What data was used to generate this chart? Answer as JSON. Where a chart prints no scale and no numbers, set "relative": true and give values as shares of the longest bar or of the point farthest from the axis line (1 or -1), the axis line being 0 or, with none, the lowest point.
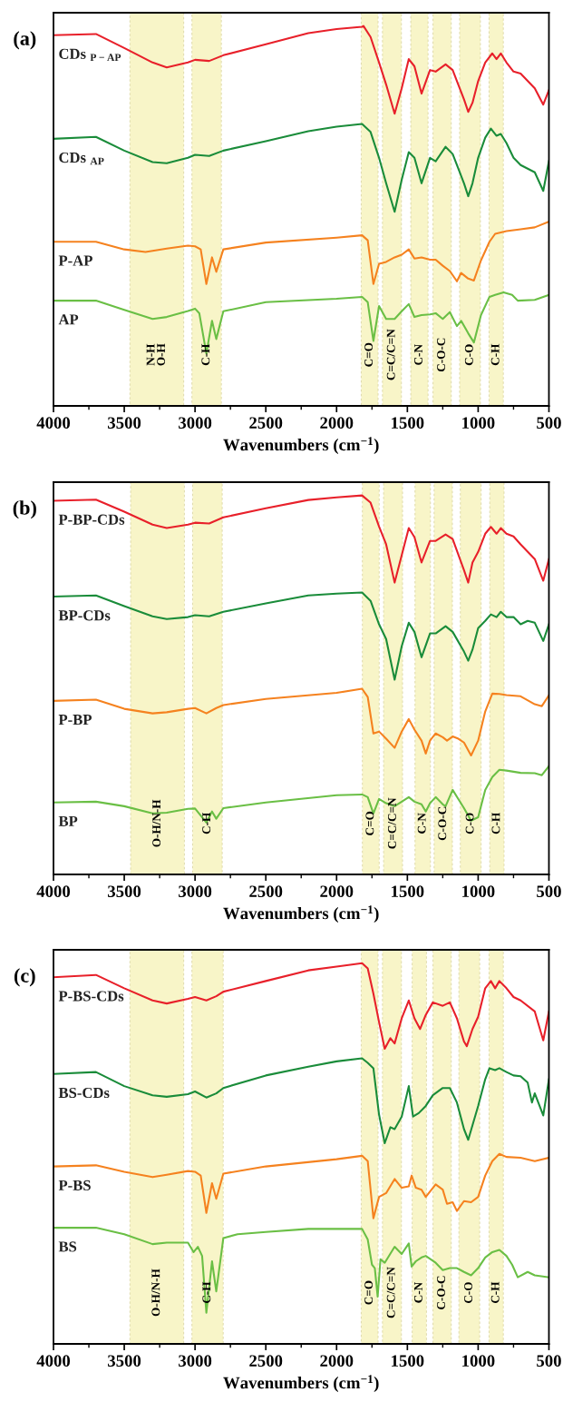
{
  "chart_data": [
    {
      "type": "line",
      "title": "(a)",
      "xlabel": "Wavenumbers (cm$^{−1}$)",
      "relative": true,
      "xlim": [
        4000,
        500
      ],
      "xticks": [
        4000,
        3500,
        3000,
        2500,
        2000,
        1500,
        1000,
        500
      ],
      "grid": false,
      "legend": false,
      "bands": [
        {
          "axis": "x",
          "from": 3460,
          "to": 3080,
          "label": "N-H\nO-H",
          "color": "#f8f5c8"
        },
        {
          "axis": "x",
          "from": 3022,
          "to": 2814,
          "label": "C-H",
          "color": "#f8f5c8"
        },
        {
          "axis": "x",
          "from": 1826,
          "to": 1707,
          "label": "C=O",
          "color": "#f8f5c8"
        },
        {
          "axis": "x",
          "from": 1676,
          "to": 1542,
          "label": "C=C/C=N",
          "color": "#f8f5c8"
        },
        {
          "axis": "x",
          "from": 1476,
          "to": 1354,
          "label": "C-N",
          "color": "#f8f5c8"
        },
        {
          "axis": "x",
          "from": 1319,
          "to": 1190,
          "label": "C-O-C",
          "color": "#f8f5c8"
        },
        {
          "axis": "x",
          "from": 1131,
          "to": 984,
          "label": "C-O",
          "color": "#f8f5c8"
        },
        {
          "axis": "x",
          "from": 923,
          "to": 822,
          "label": "C-H",
          "color": "#f8f5c8"
        }
      ],
      "series": [
        {
          "name": "CDs $_{P−AP}$",
          "color": "#e8202a",
          "x": [
            4000,
            3700,
            3500,
            3300,
            3200,
            3050,
            3000,
            2900,
            2800,
            2500,
            2200,
            2000,
            1820,
            1810,
            1760,
            1700,
            1650,
            1590,
            1540,
            1490,
            1450,
            1400,
            1340,
            1300,
            1230,
            1180,
            1100,
            1070,
            1040,
            1000,
            950,
            900,
            870,
            840,
            800,
            750,
            700,
            600,
            540,
            500
          ],
          "values": [
            0.976,
            0.979,
            0.942,
            0.904,
            0.891,
            0.904,
            0.911,
            0.908,
            0.923,
            0.952,
            0.981,
            0.992,
            0.998,
            1.0,
            0.971,
            0.904,
            0.846,
            0.769,
            0.836,
            0.913,
            0.894,
            0.822,
            0.884,
            0.88,
            0.899,
            0.884,
            0.807,
            0.774,
            0.798,
            0.855,
            0.904,
            0.928,
            0.913,
            0.928,
            0.904,
            0.88,
            0.875,
            0.836,
            0.793,
            0.831
          ]
        },
        {
          "name": "CDs $_{AP}$",
          "color": "#1a8c3a",
          "x": [
            4000,
            3700,
            3500,
            3300,
            3200,
            3050,
            3000,
            2900,
            2800,
            2500,
            2200,
            2000,
            1820,
            1760,
            1700,
            1650,
            1590,
            1540,
            1490,
            1450,
            1400,
            1340,
            1300,
            1230,
            1180,
            1100,
            1070,
            1040,
            1000,
            950,
            910,
            870,
            840,
            800,
            750,
            700,
            600,
            540,
            500
          ],
          "values": [
            0.703,
            0.708,
            0.672,
            0.642,
            0.639,
            0.653,
            0.661,
            0.658,
            0.672,
            0.697,
            0.723,
            0.735,
            0.742,
            0.721,
            0.653,
            0.586,
            0.511,
            0.595,
            0.668,
            0.653,
            0.586,
            0.653,
            0.644,
            0.682,
            0.663,
            0.586,
            0.552,
            0.586,
            0.653,
            0.706,
            0.73,
            0.711,
            0.716,
            0.692,
            0.653,
            0.634,
            0.615,
            0.566,
            0.644
          ]
        },
        {
          "name": "P-AP",
          "color": "#f5821f",
          "x": [
            4000,
            3700,
            3500,
            3350,
            3200,
            3050,
            3000,
            2960,
            2920,
            2880,
            2850,
            2800,
            2500,
            2000,
            1820,
            1780,
            1740,
            1700,
            1650,
            1590,
            1540,
            1490,
            1450,
            1400,
            1340,
            1300,
            1250,
            1200,
            1150,
            1120,
            1070,
            1030,
            980,
            920,
            880,
            800,
            700,
            600,
            500
          ],
          "values": [
            0.432,
            0.432,
            0.412,
            0.405,
            0.414,
            0.422,
            0.42,
            0.412,
            0.321,
            0.391,
            0.353,
            0.412,
            0.43,
            0.443,
            0.449,
            0.436,
            0.321,
            0.374,
            0.379,
            0.391,
            0.398,
            0.412,
            0.388,
            0.391,
            0.385,
            0.385,
            0.369,
            0.355,
            0.328,
            0.35,
            0.335,
            0.33,
            0.383,
            0.432,
            0.453,
            0.46,
            0.465,
            0.47,
            0.485
          ]
        },
        {
          "name": "AP",
          "color": "#6abf45",
          "x": [
            4000,
            3700,
            3500,
            3300,
            3200,
            3050,
            3000,
            2970,
            2920,
            2880,
            2850,
            2800,
            2500,
            2000,
            1820,
            1780,
            1740,
            1700,
            1650,
            1590,
            1540,
            1490,
            1450,
            1400,
            1340,
            1300,
            1250,
            1200,
            1150,
            1120,
            1070,
            1030,
            980,
            920,
            880,
            820,
            760,
            720,
            600,
            500
          ],
          "values": [
            0.277,
            0.277,
            0.253,
            0.229,
            0.234,
            0.25,
            0.256,
            0.244,
            0.138,
            0.224,
            0.176,
            0.249,
            0.273,
            0.282,
            0.287,
            0.273,
            0.171,
            0.263,
            0.229,
            0.229,
            0.249,
            0.268,
            0.234,
            0.239,
            0.241,
            0.244,
            0.229,
            0.247,
            0.21,
            0.224,
            0.191,
            0.167,
            0.239,
            0.287,
            0.292,
            0.299,
            0.292,
            0.277,
            0.279,
            0.292
          ]
        }
      ]
    },
    {
      "type": "line",
      "title": "(b)",
      "xlabel": "Wavenumbers (cm$^{−1}$)",
      "relative": true,
      "xlim": [
        4000,
        500
      ],
      "xticks": [
        4000,
        3500,
        3000,
        2500,
        2000,
        1500,
        1000,
        500
      ],
      "grid": false,
      "legend": false,
      "bands": [
        {
          "axis": "x",
          "from": 3455,
          "to": 3075,
          "label": "O-H/N-H",
          "color": "#f8f5c8"
        },
        {
          "axis": "x",
          "from": 3017,
          "to": 2808,
          "label": "C-H",
          "color": "#f8f5c8"
        },
        {
          "axis": "x",
          "from": 1818,
          "to": 1699,
          "label": "C=O",
          "color": "#f8f5c8"
        },
        {
          "axis": "x",
          "from": 1668,
          "to": 1534,
          "label": "C=C/C=N",
          "color": "#f8f5c8"
        },
        {
          "axis": "x",
          "from": 1446,
          "to": 1337,
          "label": "C-N",
          "color": "#f8f5c8"
        },
        {
          "axis": "x",
          "from": 1311,
          "to": 1182,
          "label": "C-O-C",
          "color": "#f8f5c8"
        },
        {
          "axis": "x",
          "from": 1126,
          "to": 979,
          "label": "C-O",
          "color": "#f8f5c8"
        },
        {
          "axis": "x",
          "from": 918,
          "to": 817,
          "label": "C-H",
          "color": "#f8f5c8"
        }
      ],
      "series": [
        {
          "name": "P-BP-CDs",
          "color": "#e8202a",
          "x": [
            4000,
            3700,
            3500,
            3300,
            3200,
            3050,
            3000,
            2900,
            2800,
            2500,
            2200,
            2000,
            1820,
            1760,
            1700,
            1650,
            1590,
            1540,
            1490,
            1450,
            1400,
            1340,
            1300,
            1230,
            1180,
            1100,
            1070,
            1040,
            1000,
            950,
            910,
            870,
            840,
            800,
            750,
            700,
            600,
            540,
            500
          ],
          "values": [
            0.986,
            0.989,
            0.957,
            0.923,
            0.914,
            0.923,
            0.928,
            0.926,
            0.942,
            0.966,
            0.988,
            0.995,
            1.0,
            0.981,
            0.918,
            0.871,
            0.77,
            0.842,
            0.914,
            0.89,
            0.823,
            0.88,
            0.88,
            0.897,
            0.885,
            0.803,
            0.77,
            0.823,
            0.851,
            0.899,
            0.917,
            0.899,
            0.914,
            0.899,
            0.892,
            0.871,
            0.832,
            0.775,
            0.832
          ]
        },
        {
          "name": "BP-CDs",
          "color": "#1a8c3a",
          "x": [
            4000,
            3700,
            3500,
            3300,
            3200,
            3050,
            3000,
            2900,
            2800,
            2500,
            2200,
            2000,
            1820,
            1760,
            1700,
            1650,
            1590,
            1540,
            1490,
            1450,
            1400,
            1340,
            1300,
            1230,
            1180,
            1100,
            1070,
            1040,
            1000,
            950,
            910,
            870,
            840,
            800,
            750,
            700,
            650,
            600,
            540,
            500
          ],
          "values": [
            0.733,
            0.736,
            0.708,
            0.681,
            0.674,
            0.679,
            0.684,
            0.681,
            0.693,
            0.715,
            0.736,
            0.741,
            0.744,
            0.722,
            0.66,
            0.621,
            0.514,
            0.602,
            0.664,
            0.64,
            0.573,
            0.636,
            0.636,
            0.655,
            0.64,
            0.588,
            0.564,
            0.593,
            0.65,
            0.669,
            0.686,
            0.679,
            0.693,
            0.679,
            0.679,
            0.66,
            0.669,
            0.664,
            0.616,
            0.66
          ]
        },
        {
          "name": "P-BP",
          "color": "#f5821f",
          "x": [
            4000,
            3700,
            3500,
            3300,
            3200,
            3050,
            3000,
            2920,
            2850,
            2800,
            2500,
            2000,
            1820,
            1780,
            1740,
            1700,
            1650,
            1590,
            1540,
            1490,
            1450,
            1400,
            1370,
            1340,
            1300,
            1250,
            1220,
            1180,
            1140,
            1100,
            1050,
            1000,
            950,
            900,
            850,
            800,
            700,
            600,
            550,
            500
          ],
          "values": [
            0.458,
            0.461,
            0.437,
            0.425,
            0.428,
            0.437,
            0.439,
            0.425,
            0.439,
            0.447,
            0.463,
            0.479,
            0.49,
            0.468,
            0.372,
            0.377,
            0.358,
            0.334,
            0.377,
            0.41,
            0.382,
            0.353,
            0.319,
            0.353,
            0.372,
            0.362,
            0.353,
            0.364,
            0.358,
            0.348,
            0.314,
            0.353,
            0.43,
            0.477,
            0.476,
            0.473,
            0.47,
            0.449,
            0.444,
            0.473
          ]
        },
        {
          "name": "BP",
          "color": "#6abf45",
          "x": [
            4000,
            3700,
            3500,
            3300,
            3200,
            3050,
            3000,
            2920,
            2880,
            2850,
            2800,
            2500,
            2000,
            1820,
            1780,
            1740,
            1700,
            1650,
            1590,
            1540,
            1490,
            1450,
            1400,
            1370,
            1340,
            1300,
            1250,
            1230,
            1180,
            1140,
            1100,
            1050,
            1000,
            950,
            900,
            850,
            800,
            700,
            600,
            550,
            500
          ],
          "values": [
            0.19,
            0.192,
            0.18,
            0.161,
            0.163,
            0.173,
            0.174,
            0.137,
            0.166,
            0.147,
            0.175,
            0.19,
            0.209,
            0.211,
            0.204,
            0.161,
            0.199,
            0.188,
            0.18,
            0.192,
            0.204,
            0.192,
            0.185,
            0.166,
            0.188,
            0.204,
            0.185,
            0.18,
            0.223,
            0.199,
            0.175,
            0.142,
            0.151,
            0.223,
            0.257,
            0.276,
            0.274,
            0.268,
            0.267,
            0.262,
            0.286
          ]
        }
      ]
    },
    {
      "type": "line",
      "title": "(c)",
      "xlabel": "Wavenumbers (cm$^{−1}$)",
      "relative": true,
      "xlim": [
        4000,
        500
      ],
      "xticks": [
        4000,
        3500,
        3000,
        2500,
        2000,
        1500,
        1000,
        500
      ],
      "grid": false,
      "legend": false,
      "bands": [
        {
          "axis": "x",
          "from": 3460,
          "to": 3080,
          "label": "O-H/N-H",
          "color": "#f8f5c8"
        },
        {
          "axis": "x",
          "from": 3022,
          "to": 2801,
          "label": "C-H",
          "color": "#f8f5c8"
        },
        {
          "axis": "x",
          "from": 1826,
          "to": 1707,
          "label": "C=O",
          "color": "#f8f5c8"
        },
        {
          "axis": "x",
          "from": 1676,
          "to": 1542,
          "label": "C=C/C=N",
          "color": "#f8f5c8"
        },
        {
          "axis": "x",
          "from": 1466,
          "to": 1365,
          "label": "C-N",
          "color": "#f8f5c8"
        },
        {
          "axis": "x",
          "from": 1319,
          "to": 1190,
          "label": "C-O-C",
          "color": "#f8f5c8"
        },
        {
          "axis": "x",
          "from": 1136,
          "to": 989,
          "label": "C-O",
          "color": "#f8f5c8"
        },
        {
          "axis": "x",
          "from": 923,
          "to": 822,
          "label": "C-H",
          "color": "#f8f5c8"
        }
      ],
      "series": [
        {
          "name": "P-BS-CDs",
          "color": "#e8202a",
          "x": [
            4000,
            3700,
            3500,
            3300,
            3200,
            3050,
            3000,
            2920,
            2850,
            2800,
            2500,
            2200,
            2000,
            1820,
            1780,
            1740,
            1700,
            1660,
            1620,
            1590,
            1540,
            1490,
            1450,
            1410,
            1370,
            1320,
            1250,
            1200,
            1150,
            1100,
            1080,
            1040,
            1000,
            950,
            910,
            880,
            850,
            800,
            750,
            700,
            600,
            540,
            500
          ],
          "values": [
            0.963,
            0.969,
            0.934,
            0.902,
            0.894,
            0.906,
            0.911,
            0.902,
            0.913,
            0.925,
            0.953,
            0.981,
            0.991,
            1.0,
            0.986,
            0.92,
            0.845,
            0.775,
            0.803,
            0.789,
            0.855,
            0.902,
            0.855,
            0.827,
            0.864,
            0.897,
            0.888,
            0.897,
            0.855,
            0.794,
            0.782,
            0.827,
            0.859,
            0.934,
            0.953,
            0.934,
            0.953,
            0.934,
            0.911,
            0.902,
            0.873,
            0.797,
            0.873
          ]
        },
        {
          "name": "BS-CDs",
          "color": "#1a8c3a",
          "x": [
            4000,
            3700,
            3500,
            3300,
            3200,
            3050,
            3000,
            2920,
            2850,
            2800,
            2500,
            2200,
            2000,
            1820,
            1780,
            1740,
            1700,
            1660,
            1620,
            1590,
            1540,
            1490,
            1460,
            1420,
            1370,
            1320,
            1250,
            1200,
            1150,
            1100,
            1070,
            1040,
            1000,
            950,
            920,
            880,
            850,
            800,
            750,
            700,
            650,
            620,
            600,
            540,
            500
          ],
          "values": [
            0.709,
            0.714,
            0.677,
            0.653,
            0.649,
            0.656,
            0.663,
            0.647,
            0.658,
            0.672,
            0.705,
            0.728,
            0.742,
            0.75,
            0.738,
            0.724,
            0.602,
            0.527,
            0.569,
            0.564,
            0.597,
            0.677,
            0.597,
            0.606,
            0.625,
            0.653,
            0.672,
            0.672,
            0.634,
            0.564,
            0.536,
            0.574,
            0.625,
            0.695,
            0.724,
            0.719,
            0.724,
            0.714,
            0.705,
            0.703,
            0.686,
            0.634,
            0.658,
            0.6,
            0.695
          ]
        },
        {
          "name": "P-BS",
          "color": "#f5821f",
          "x": [
            4000,
            3700,
            3500,
            3300,
            3200,
            3050,
            3000,
            2960,
            2920,
            2880,
            2850,
            2800,
            2500,
            2000,
            1820,
            1780,
            1740,
            1700,
            1650,
            1590,
            1540,
            1490,
            1470,
            1440,
            1400,
            1370,
            1300,
            1250,
            1220,
            1180,
            1150,
            1100,
            1050,
            1000,
            950,
            900,
            850,
            800,
            700,
            600,
            500
          ],
          "values": [
            0.466,
            0.469,
            0.452,
            0.438,
            0.444,
            0.454,
            0.452,
            0.442,
            0.344,
            0.422,
            0.381,
            0.447,
            0.466,
            0.485,
            0.494,
            0.48,
            0.33,
            0.386,
            0.396,
            0.433,
            0.41,
            0.414,
            0.442,
            0.41,
            0.405,
            0.386,
            0.419,
            0.405,
            0.368,
            0.372,
            0.349,
            0.375,
            0.372,
            0.386,
            0.442,
            0.48,
            0.499,
            0.491,
            0.489,
            0.48,
            0.489
          ]
        },
        {
          "name": "BS",
          "color": "#6abf45",
          "x": [
            4000,
            3700,
            3500,
            3300,
            3200,
            3050,
            3010,
            2980,
            2950,
            2920,
            2880,
            2850,
            2800,
            2700,
            2500,
            2200,
            2000,
            1820,
            1780,
            1750,
            1730,
            1710,
            1690,
            1660,
            1590,
            1540,
            1490,
            1470,
            1440,
            1400,
            1370,
            1300,
            1250,
            1200,
            1150,
            1100,
            1050,
            1000,
            950,
            900,
            850,
            800,
            760,
            720,
            650,
            600,
            500
          ],
          "values": [
            0.305,
            0.305,
            0.288,
            0.262,
            0.266,
            0.266,
            0.241,
            0.255,
            0.231,
            0.082,
            0.217,
            0.138,
            0.278,
            0.288,
            0.294,
            0.302,
            0.302,
            0.302,
            0.274,
            0.208,
            0.199,
            0.124,
            0.222,
            0.213,
            0.255,
            0.236,
            0.264,
            0.203,
            0.217,
            0.227,
            0.231,
            0.213,
            0.194,
            0.199,
            0.199,
            0.189,
            0.18,
            0.199,
            0.227,
            0.241,
            0.247,
            0.231,
            0.208,
            0.175,
            0.189,
            0.18,
            0.175
          ]
        }
      ]
    }
  ]
}
